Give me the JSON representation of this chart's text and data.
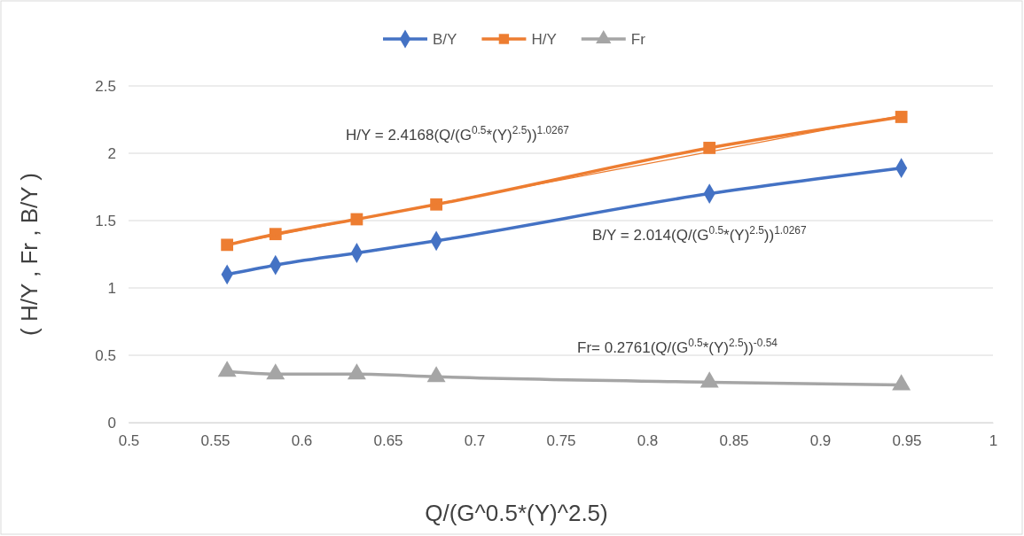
{
  "chart_data": {
    "type": "line",
    "xlabel": "Q/(G^0.5*(Y)^2.5)",
    "ylabel": "( H/Y , Fr ,  B/Y )",
    "xlim": [
      0.5,
      1
    ],
    "xticks": [
      0.5,
      0.55,
      0.6,
      0.65,
      0.7,
      0.75,
      0.8,
      0.85,
      0.9,
      0.95,
      1
    ],
    "ylim": [
      0,
      2.5
    ],
    "yticks": [
      0,
      0.5,
      1,
      1.5,
      2,
      2.5
    ],
    "grid": "y",
    "legend": "top",
    "x": [
      0.557,
      0.585,
      0.632,
      0.678,
      0.836,
      0.947
    ],
    "series": [
      {
        "name": "B/Y",
        "color": "#4472c4",
        "marker": "diamond",
        "values": [
          1.1,
          1.17,
          1.26,
          1.35,
          1.7,
          1.89
        ]
      },
      {
        "name": "H/Y",
        "color": "#ed7d31",
        "marker": "square",
        "values": [
          1.32,
          1.4,
          1.51,
          1.62,
          2.04,
          2.27
        ]
      },
      {
        "name": "Fr",
        "color": "#a5a5a5",
        "marker": "triangle",
        "values": [
          0.38,
          0.36,
          0.36,
          0.34,
          0.3,
          0.28
        ]
      },
      {
        "type": "line",
        "color": "#ed7d31",
        "marker": "none",
        "x": [
          0.557,
          0.7,
          0.836,
          0.947
        ],
        "values": [
          1.32,
          1.68,
          2.01,
          2.28
        ]
      }
    ],
    "annotations": [
      "H/Y = 2.4168(Q/(G$^{0.5}$*(Y)$^{2.5}$))$^{1.0267}$",
      "B/Y = 2.014(Q/(G$^{0.5}$*(Y)$^{2.5}$))$^{1.0267}$",
      "Fr= 0.2761(Q/(G$^{0.5}$*(Y)$^{2.5}$))$^{-0.54}$"
    ]
  }
}
